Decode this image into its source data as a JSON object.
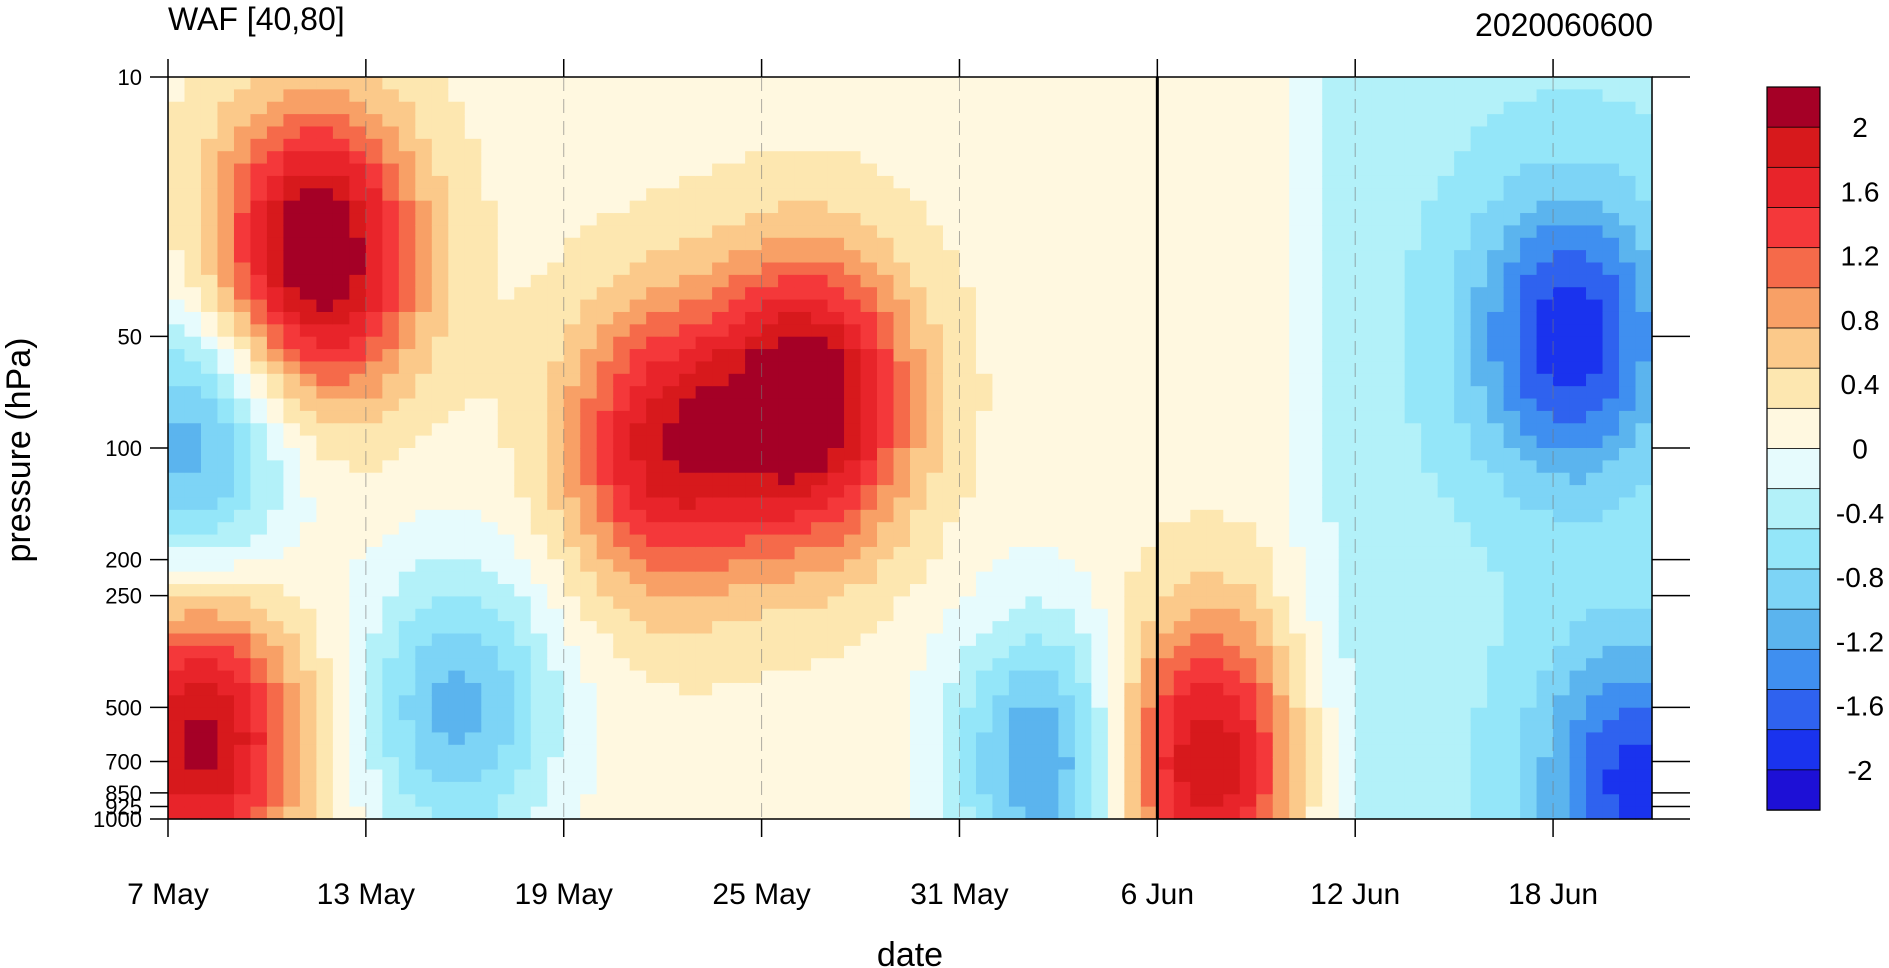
{
  "chart_data": {
    "type": "heatmap",
    "title": "WAF [40,80]",
    "subtitle": "2020060600",
    "xlabel": "date",
    "ylabel": "pressure (hPa)",
    "x_ticks": [
      {
        "label": "7 May",
        "day": 0
      },
      {
        "label": "13 May",
        "day": 6
      },
      {
        "label": "19 May",
        "day": 12
      },
      {
        "label": "25 May",
        "day": 18
      },
      {
        "label": "31 May",
        "day": 24
      },
      {
        "label": "6 Jun",
        "day": 30
      },
      {
        "label": "12 Jun",
        "day": 36
      },
      {
        "label": "18 Jun",
        "day": 42
      }
    ],
    "xlim": [
      0,
      45
    ],
    "y_ticks": [
      {
        "label": "10",
        "value": 10
      },
      {
        "label": "50",
        "value": 50
      },
      {
        "label": "100",
        "value": 100
      },
      {
        "label": "200",
        "value": 200
      },
      {
        "label": "250",
        "value": 250
      },
      {
        "label": "500",
        "value": 500
      },
      {
        "label": "700",
        "value": 700
      },
      {
        "label": "850",
        "value": 850
      },
      {
        "label": "925",
        "value": 925
      },
      {
        "label": "1000",
        "value": 1000
      }
    ],
    "ylim": [
      1000,
      10
    ],
    "y_scale": "log",
    "reference_line_day": 30,
    "colorbar": {
      "labels": [
        "2",
        "1.6",
        "1.2",
        "0.8",
        "0.4",
        "0",
        "-0.4",
        "-0.8",
        "-1.2",
        "-1.6",
        "-2"
      ],
      "colors": [
        "#a50026",
        "#d7191c",
        "#e8242a",
        "#f4383a",
        "#f56a4a",
        "#f8a066",
        "#fbc98a",
        "#fde7b0",
        "#fff8e0",
        "#e6fbfd",
        "#b3f1f9",
        "#94e6f9",
        "#7dd4f6",
        "#5bb4ee",
        "#3f8ff0",
        "#2f62ef",
        "#1a33ee",
        "#1d10d6"
      ]
    },
    "features": [
      {
        "center_day": 4.5,
        "center_p": 30,
        "value": 2.2
      },
      {
        "center_day": 19.5,
        "center_p": 75,
        "value": 2.1
      },
      {
        "center_day": 15,
        "center_p": 100,
        "value": 1.6
      },
      {
        "center_day": 1,
        "center_p": 600,
        "value": 1.9
      },
      {
        "center_day": 31.2,
        "center_p": 700,
        "value": 1.9
      },
      {
        "center_day": 0.8,
        "center_p": 100,
        "value": -1.3
      },
      {
        "center_day": 8.8,
        "center_p": 500,
        "value": -1.2
      },
      {
        "center_day": 26.8,
        "center_p": 700,
        "value": -1.5
      },
      {
        "center_day": 42.5,
        "center_p": 50,
        "value": -1.5
      },
      {
        "center_day": 44.5,
        "center_p": 800,
        "value": -1.4
      }
    ]
  }
}
